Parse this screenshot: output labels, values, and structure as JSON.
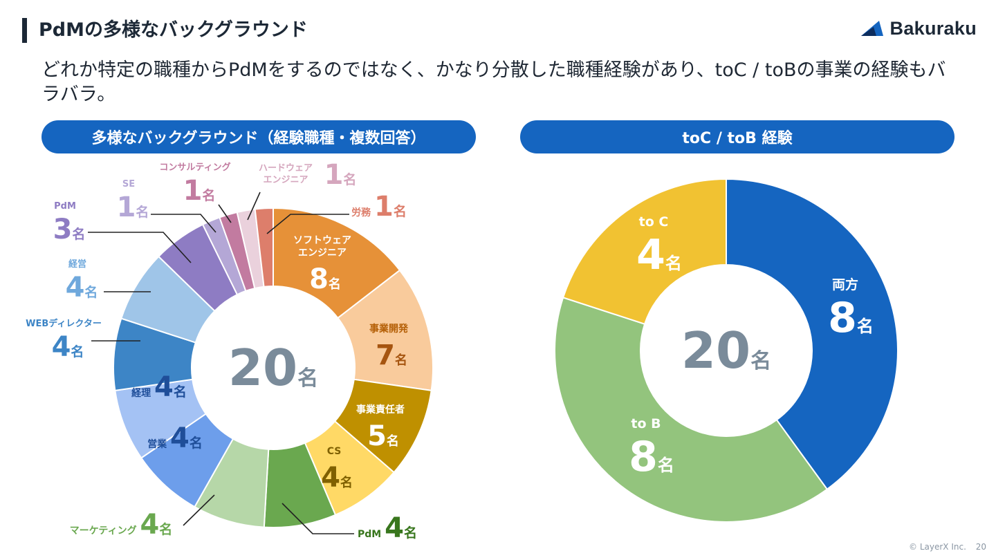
{
  "header": {
    "title": "PdMの多様なバックグラウンド",
    "logo_text": "Bakuraku"
  },
  "subtitle": "どれか特定の職種からPdMをするのではなく、かなり分散した職種経験があり、toC / toBの事業の経験もバラバラ。",
  "footer": {
    "copyright": "© LayerX Inc.",
    "page_number": "20"
  },
  "colors": {
    "accent": "#1565c0",
    "center_text": "#7a8b9a"
  },
  "chart_data": [
    {
      "type": "pie",
      "title": "多様なバックグラウンド（経験職種・複数回答）",
      "center_label": {
        "value": "20",
        "unit": "名"
      },
      "slices": [
        {
          "label": "ソフトウェア\nエンジニア",
          "value": 8,
          "unit": "名",
          "color": "#e69138"
        },
        {
          "label": "事業開発",
          "value": 7,
          "unit": "名",
          "color": "#f9cb9c"
        },
        {
          "label": "事業責任者",
          "value": 5,
          "unit": "名",
          "color": "#bf9000"
        },
        {
          "label": "CS",
          "value": 4,
          "unit": "名",
          "color": "#ffd966"
        },
        {
          "label": "PdM",
          "value": 4,
          "unit": "名",
          "color": "#6aa84f"
        },
        {
          "label": "マーケティング",
          "value": 4,
          "unit": "名",
          "color": "#b6d7a8"
        },
        {
          "label": "営業",
          "value": 4,
          "unit": "名",
          "color": "#6d9eeb"
        },
        {
          "label": "経理",
          "value": 4,
          "unit": "名",
          "color": "#a4c2f4"
        },
        {
          "label": "WEBディレクター",
          "value": 4,
          "unit": "名",
          "color": "#3d85c6"
        },
        {
          "label": "経営",
          "value": 4,
          "unit": "名",
          "color": "#9fc5e8"
        },
        {
          "label": "PdM",
          "value": 3,
          "unit": "名",
          "color": "#8e7cc3"
        },
        {
          "label": "SE",
          "value": 1,
          "unit": "名",
          "color": "#b4a7d6"
        },
        {
          "label": "コンサルティング",
          "value": 1,
          "unit": "名",
          "color": "#c27ba0"
        },
        {
          "label": "ハードウェア\nエンジニア",
          "value": 1,
          "unit": "名",
          "color": "#ead1dc"
        },
        {
          "label": "労務",
          "value": 1,
          "unit": "名",
          "color": "#dd7e6b"
        }
      ]
    },
    {
      "type": "pie",
      "title": "toC / toB 経験",
      "center_label": {
        "value": "20",
        "unit": "名"
      },
      "slices": [
        {
          "label": "両方",
          "value": 8,
          "unit": "名",
          "color": "#1565c0"
        },
        {
          "label": "to B",
          "value": 8,
          "unit": "名",
          "color": "#93c47d"
        },
        {
          "label": "to C",
          "value": 4,
          "unit": "名",
          "color": "#f1c232"
        }
      ]
    }
  ]
}
